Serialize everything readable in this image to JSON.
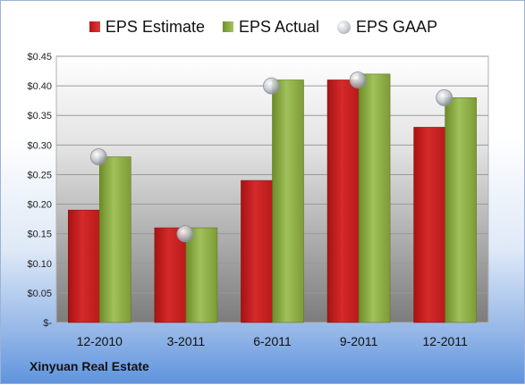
{
  "chart_data": {
    "type": "bar",
    "categories": [
      "12-2010",
      "3-2011",
      "6-2011",
      "9-2011",
      "12-2011"
    ],
    "series": [
      {
        "name": "EPS Estimate",
        "values": [
          0.19,
          0.16,
          0.24,
          0.41,
          0.33
        ],
        "color": "#cc2222"
      },
      {
        "name": "EPS Actual",
        "values": [
          0.28,
          0.16,
          0.41,
          0.42,
          0.38
        ],
        "color": "#8db04a"
      },
      {
        "name": "EPS GAAP",
        "values": [
          0.28,
          0.15,
          0.4,
          0.41,
          0.38
        ],
        "color": "#b8bcc4",
        "marker": "circle"
      }
    ],
    "y_ticks": [
      "$-",
      "$0.05",
      "$0.10",
      "$0.15",
      "$0.20",
      "$0.25",
      "$0.30",
      "$0.35",
      "$0.40",
      "$0.45"
    ],
    "ylim": [
      0,
      0.45
    ],
    "grid": true,
    "legend_position": "top-center"
  },
  "company": "Xinyuan Real Estate"
}
